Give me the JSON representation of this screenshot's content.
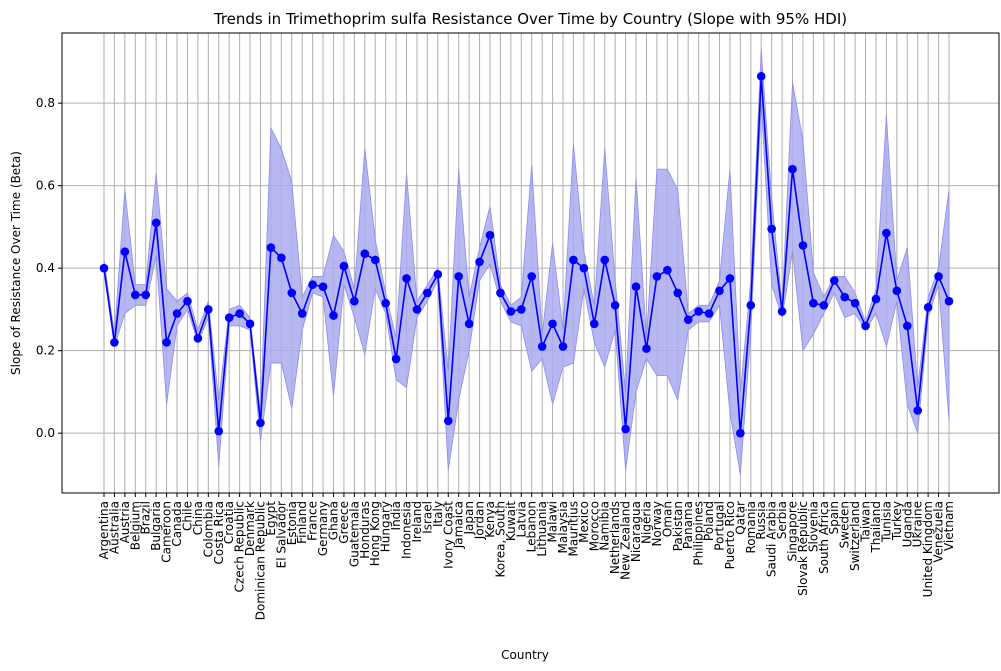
{
  "chart_data": {
    "type": "line",
    "title": "Trends in Trimethoprim sulfa Resistance Over Time by Country (Slope with 95% HDI)",
    "xlabel": "Country",
    "ylabel": "Slope of Resistance Over Time (Beta)",
    "ylim": [
      -0.145,
      0.97
    ],
    "yticks": [
      0.0,
      0.2,
      0.4,
      0.6,
      0.8
    ],
    "grid": true,
    "colors": {
      "line": "#0000ff",
      "band": "#aaaaf0"
    },
    "categories": [
      "Argentina",
      "Australia",
      "Austria",
      "Belgium",
      "Brazil",
      "Bulgaria",
      "Cameroon",
      "Canada",
      "Chile",
      "China",
      "Colombia",
      "Costa Rica",
      "Croatia",
      "Czech Republic",
      "Denmark",
      "Dominican Republic",
      "Egypt",
      "El Salvador",
      "Estonia",
      "Finland",
      "France",
      "Germany",
      "Ghana",
      "Greece",
      "Guatemala",
      "Honduras",
      "Hong Kong",
      "Hungary",
      "India",
      "Indonesia",
      "Ireland",
      "Israel",
      "Italy",
      "Ivory Coast",
      "Jamaica",
      "Japan",
      "Jordan",
      "Kenya",
      "Korea, South",
      "Kuwait",
      "Latvia",
      "Lebanon",
      "Lithuania",
      "Malawi",
      "Malaysia",
      "Mauritius",
      "Mexico",
      "Morocco",
      "Namibia",
      "Netherlands",
      "New Zealand",
      "Nicaragua",
      "Nigeria",
      "Norway",
      "Oman",
      "Pakistan",
      "Panama",
      "Philippines",
      "Poland",
      "Portugal",
      "Puerto Rico",
      "Qatar",
      "Romania",
      "Russia",
      "Saudi Arabia",
      "Serbia",
      "Singapore",
      "Slovak Republic",
      "Slovenia",
      "South Africa",
      "Spain",
      "Sweden",
      "Switzerland",
      "Taiwan",
      "Thailand",
      "Tunisia",
      "Turkey",
      "Uganda",
      "Ukraine",
      "United Kingdom",
      "Venezuela",
      "Vietnam"
    ],
    "series": [
      {
        "values": [
          0.4,
          0.22,
          0.44,
          0.335,
          0.335,
          0.51,
          0.22,
          0.29,
          0.32,
          0.23,
          0.3,
          0.005,
          0.28,
          0.29,
          0.265,
          0.025,
          0.45,
          0.425,
          0.34,
          0.29,
          0.36,
          0.355,
          0.285,
          0.405,
          0.32,
          0.435,
          0.42,
          0.315,
          0.18,
          0.375,
          0.3,
          0.34,
          0.385,
          0.03,
          0.38,
          0.265,
          0.415,
          0.48,
          0.34,
          0.295,
          0.3,
          0.38,
          0.21,
          0.265,
          0.21,
          0.42,
          0.4,
          0.265,
          0.42,
          0.31,
          0.01,
          0.355,
          0.205,
          0.38,
          0.395,
          0.34,
          0.275,
          0.295,
          0.29,
          0.345,
          0.375,
          0.0,
          0.31,
          0.865,
          0.495,
          0.295,
          0.64,
          0.455,
          0.315,
          0.31,
          0.37,
          0.33,
          0.315,
          0.26,
          0.325,
          0.485,
          0.345,
          0.26,
          0.055,
          0.305,
          0.38,
          0.32
        ],
        "hdi_lower": [
          0.39,
          0.21,
          0.29,
          0.31,
          0.31,
          0.43,
          0.07,
          0.26,
          0.3,
          0.22,
          0.28,
          -0.08,
          0.26,
          0.26,
          0.25,
          -0.02,
          0.17,
          0.17,
          0.06,
          0.25,
          0.34,
          0.33,
          0.09,
          0.36,
          0.28,
          0.19,
          0.35,
          0.29,
          0.13,
          0.11,
          0.28,
          0.32,
          0.37,
          -0.09,
          0.08,
          0.2,
          0.37,
          0.41,
          0.32,
          0.27,
          0.26,
          0.15,
          0.18,
          0.07,
          0.16,
          0.17,
          0.35,
          0.22,
          0.16,
          0.25,
          -0.09,
          0.1,
          0.18,
          0.14,
          0.14,
          0.08,
          0.25,
          0.27,
          0.27,
          0.31,
          0.05,
          -0.1,
          0.24,
          0.8,
          0.36,
          0.28,
          0.44,
          0.2,
          0.24,
          0.29,
          0.34,
          0.28,
          0.29,
          0.25,
          0.29,
          0.21,
          0.32,
          0.07,
          0.0,
          0.28,
          0.36,
          0.03
        ],
        "hdi_upper": [
          0.42,
          0.24,
          0.59,
          0.36,
          0.36,
          0.63,
          0.35,
          0.32,
          0.34,
          0.25,
          0.32,
          0.08,
          0.3,
          0.31,
          0.28,
          0.05,
          0.74,
          0.69,
          0.61,
          0.33,
          0.38,
          0.38,
          0.48,
          0.44,
          0.35,
          0.69,
          0.47,
          0.34,
          0.23,
          0.63,
          0.32,
          0.36,
          0.4,
          0.15,
          0.64,
          0.33,
          0.45,
          0.55,
          0.36,
          0.31,
          0.33,
          0.65,
          0.24,
          0.46,
          0.25,
          0.7,
          0.44,
          0.31,
          0.69,
          0.37,
          0.1,
          0.62,
          0.23,
          0.64,
          0.64,
          0.59,
          0.29,
          0.31,
          0.31,
          0.37,
          0.64,
          0.1,
          0.37,
          0.93,
          0.57,
          0.31,
          0.85,
          0.71,
          0.39,
          0.33,
          0.38,
          0.38,
          0.34,
          0.27,
          0.35,
          0.77,
          0.37,
          0.45,
          0.11,
          0.33,
          0.4,
          0.59
        ]
      }
    ]
  }
}
